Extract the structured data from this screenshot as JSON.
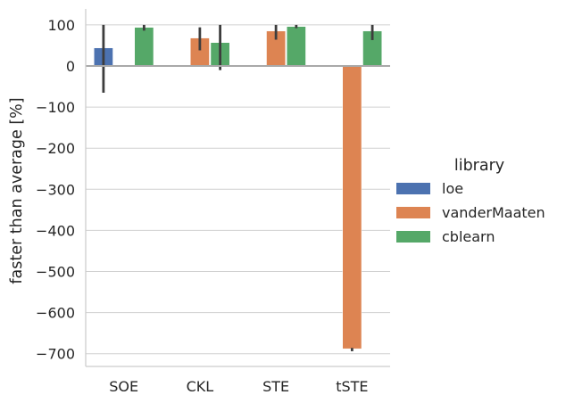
{
  "chart_data": {
    "type": "bar",
    "title": "",
    "xlabel": "",
    "ylabel": "faster than average [%]",
    "ylim": [
      -730,
      140
    ],
    "yticks": [
      100,
      0,
      -100,
      -200,
      -300,
      -400,
      -500,
      -600,
      -700
    ],
    "ytick_labels": [
      "100",
      "0",
      "−100",
      "−200",
      "−300",
      "−400",
      "−500",
      "−600",
      "−700"
    ],
    "grid": "horizontal",
    "categories": [
      "SOE",
      "CKL",
      "STE",
      "tSTE"
    ],
    "legend": {
      "title": "library",
      "placement": "right"
    },
    "series": [
      {
        "name": "loe",
        "color": "#4c72b0",
        "values": [
          44,
          null,
          null,
          null
        ],
        "err_low": [
          -65,
          null,
          null,
          null
        ],
        "err_high": [
          100,
          null,
          null,
          null
        ]
      },
      {
        "name": "vanderMaaten",
        "color": "#dd8452",
        "values": [
          null,
          68,
          85,
          -688
        ],
        "err_low": [
          null,
          38,
          64,
          -694
        ],
        "err_high": [
          null,
          94,
          100,
          -686
        ]
      },
      {
        "name": "cblearn",
        "color": "#55a868",
        "values": [
          94,
          57,
          96,
          85
        ],
        "err_low": [
          86,
          -10,
          92,
          63
        ],
        "err_high": [
          100,
          100,
          100,
          100
        ]
      }
    ]
  }
}
